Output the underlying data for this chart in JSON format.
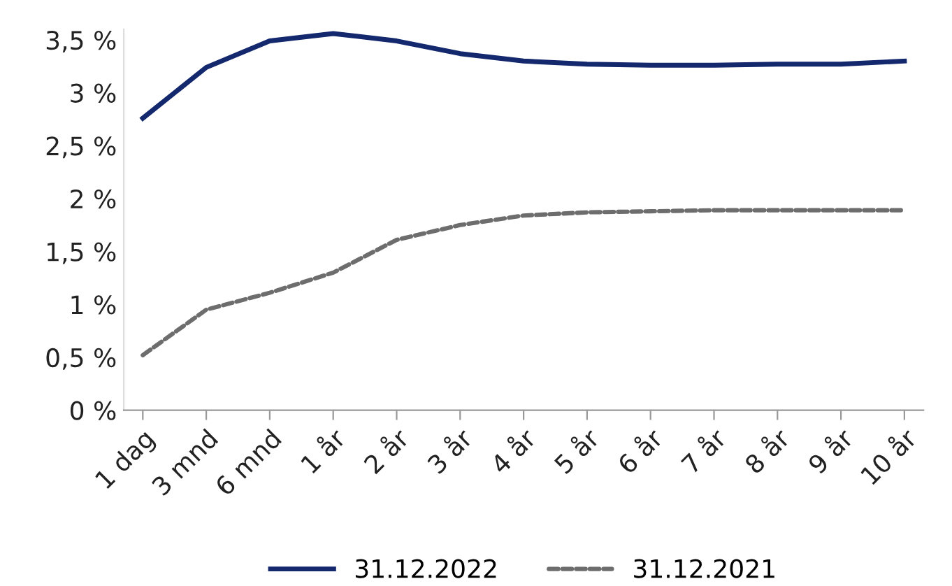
{
  "chart_data": {
    "type": "line",
    "categories": [
      "1 dag",
      "3 mnd",
      "6 mnd",
      "1 år",
      "2 år",
      "3 år",
      "4 år",
      "5 år",
      "6 år",
      "7 år",
      "8 år",
      "9 år",
      "10 år"
    ],
    "series": [
      {
        "name": "31.12.2022",
        "color": "#14286e",
        "line_style": "solid",
        "values": [
          2.76,
          3.24,
          3.49,
          3.56,
          3.49,
          3.37,
          3.3,
          3.27,
          3.26,
          3.26,
          3.27,
          3.27,
          3.3
        ]
      },
      {
        "name": "31.12.2021",
        "color": "#6d6d6d",
        "line_style": "dashed",
        "values": [
          0.52,
          0.95,
          1.11,
          1.3,
          1.61,
          1.75,
          1.84,
          1.87,
          1.88,
          1.89,
          1.89,
          1.89,
          1.89
        ]
      }
    ],
    "ylim": [
      0,
      3.6
    ],
    "yticks": [
      {
        "value": 0,
        "label": "0 %"
      },
      {
        "value": 0.5,
        "label": "0,5 %"
      },
      {
        "value": 1,
        "label": "1 %"
      },
      {
        "value": 1.5,
        "label": "1,5 %"
      },
      {
        "value": 2,
        "label": "2 %"
      },
      {
        "value": 2.5,
        "label": "2,5 %"
      },
      {
        "value": 3,
        "label": "3 %"
      },
      {
        "value": 3.5,
        "label": "3,5 %"
      }
    ],
    "grid": false,
    "legend": "bottom"
  }
}
